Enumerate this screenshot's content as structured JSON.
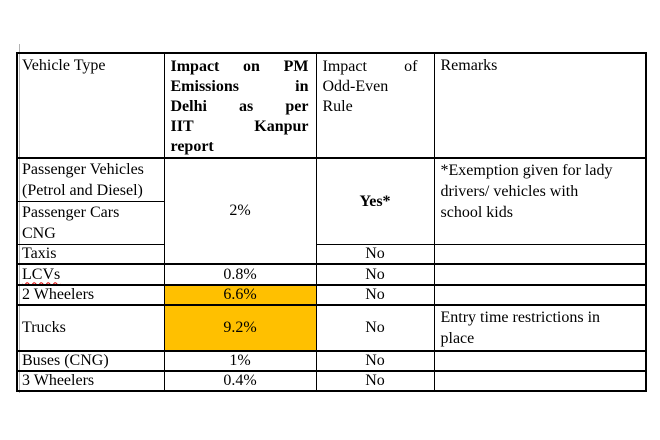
{
  "table": {
    "highlight_color": "#FFC000",
    "spellcheck_color": "#E00000",
    "headers": {
      "vehicle_type": "Vehicle Type",
      "impact_pm": "Impact on PM Emissions in Delhi as per IIT Kanpur report",
      "impact_pm_lines": [
        "Impact on PM",
        "Emissions in",
        "Delhi as per",
        "IIT Kanpur",
        "report"
      ],
      "odd_even": "Impact of Odd-Even Rule",
      "odd_even_lines": [
        "Impact of",
        "Odd-Even",
        "Rule"
      ],
      "remarks": "Remarks"
    },
    "rows": [
      {
        "vehicle": "Passenger Vehicles (Petrol and Diesel)",
        "impact": "2%",
        "odd_even": "Yes*",
        "remarks": "*Exemption given for lady\ndrivers/ vehicles with\nschool kids"
      },
      {
        "vehicle": "Passenger Cars\nCNG"
      },
      {
        "vehicle": "Taxis",
        "odd_even": "No",
        "remarks": ""
      },
      {
        "vehicle": "LCVs",
        "impact": "0.8%",
        "odd_even": "No",
        "remarks": "",
        "misspelled": true
      },
      {
        "vehicle": "2 Wheelers",
        "impact": "6.6%",
        "odd_even": "No",
        "remarks": "",
        "highlight": true
      },
      {
        "vehicle": "Trucks",
        "impact": "9.2%",
        "odd_even": "No",
        "remarks": "Entry time restrictions in\nplace",
        "highlight": true
      },
      {
        "vehicle": "Buses (CNG)",
        "impact": "1%",
        "odd_even": "No",
        "remarks": ""
      },
      {
        "vehicle": "3 Wheelers",
        "impact": "0.4%",
        "odd_even": "No",
        "remarks": ""
      }
    ]
  }
}
